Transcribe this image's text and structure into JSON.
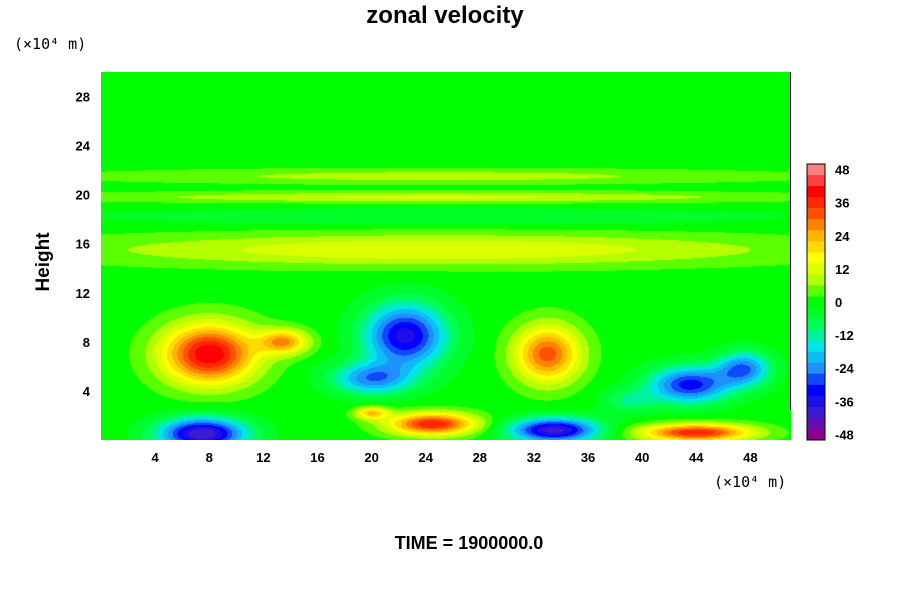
{
  "chart_data": {
    "type": "heatmap",
    "title": "zonal velocity",
    "xlabel": "",
    "ylabel": "Height",
    "x_unit": "(×10⁴ m)",
    "y_unit": "(×10⁴ m)",
    "footer": "TIME = 1900000.0",
    "xlim": [
      0,
      51
    ],
    "ylim": [
      0,
      30
    ],
    "x_ticks": [
      4,
      8,
      12,
      16,
      20,
      24,
      28,
      32,
      36,
      40,
      44,
      48
    ],
    "y_ticks": [
      4,
      8,
      12,
      16,
      20,
      24,
      28
    ],
    "colorbar": {
      "range": [
        -50,
        50
      ],
      "ticks": [
        48,
        36,
        24,
        12,
        0,
        -12,
        -24,
        -36,
        -48
      ],
      "tick_labels": [
        "48",
        "36",
        "24",
        "12",
        "0",
        "-12",
        "-24",
        "-36",
        "-48"
      ],
      "palette": [
        "#8b008b",
        "#3c1cd2",
        "#0000ff",
        "#1e90ff",
        "#00e6e6",
        "#00ff50",
        "#00ff00",
        "#b4ff00",
        "#ffff00",
        "#ffb400",
        "#ff5000",
        "#ff0000",
        "#ff8080"
      ]
    },
    "features": [
      {
        "x": 8,
        "y": 7,
        "sx": 3.4,
        "sy": 2.4,
        "value": 42
      },
      {
        "x": 13.5,
        "y": 8,
        "sx": 1.8,
        "sy": 1.0,
        "value": 26
      },
      {
        "x": 7.5,
        "y": 0.5,
        "sx": 3.2,
        "sy": 1.3,
        "value": -42
      },
      {
        "x": 22.5,
        "y": 8.5,
        "sx": 3.0,
        "sy": 2.6,
        "value": -36
      },
      {
        "x": 20,
        "y": 5,
        "sx": 3.0,
        "sy": 1.3,
        "value": -24
      },
      {
        "x": 24.5,
        "y": 1.3,
        "sx": 3.2,
        "sy": 0.9,
        "value": 38
      },
      {
        "x": 20,
        "y": 2.2,
        "sx": 1.2,
        "sy": 0.5,
        "value": 22
      },
      {
        "x": 33,
        "y": 7,
        "sx": 2.4,
        "sy": 2.3,
        "value": 32
      },
      {
        "x": 33.5,
        "y": 0.8,
        "sx": 3.3,
        "sy": 1.0,
        "value": -40
      },
      {
        "x": 43.5,
        "y": 4.5,
        "sx": 3.0,
        "sy": 1.5,
        "value": -32
      },
      {
        "x": 47.5,
        "y": 5.8,
        "sx": 2.0,
        "sy": 1.4,
        "value": -26
      },
      {
        "x": 44,
        "y": 0.6,
        "sx": 4.0,
        "sy": 0.7,
        "value": 38
      },
      {
        "x": 39,
        "y": 3.2,
        "sx": 2.0,
        "sy": 1.0,
        "value": -10
      },
      {
        "x": 25,
        "y": 15.5,
        "sx": 25.0,
        "sy": 1.3,
        "value": 14
      },
      {
        "x": 25,
        "y": 19.8,
        "sx": 25.0,
        "sy": 0.45,
        "value": 11
      },
      {
        "x": 25,
        "y": 18.2,
        "sx": 25.0,
        "sy": 0.7,
        "value": -6
      },
      {
        "x": 25,
        "y": 21.5,
        "sx": 25.0,
        "sy": 0.6,
        "value": 8
      }
    ]
  }
}
